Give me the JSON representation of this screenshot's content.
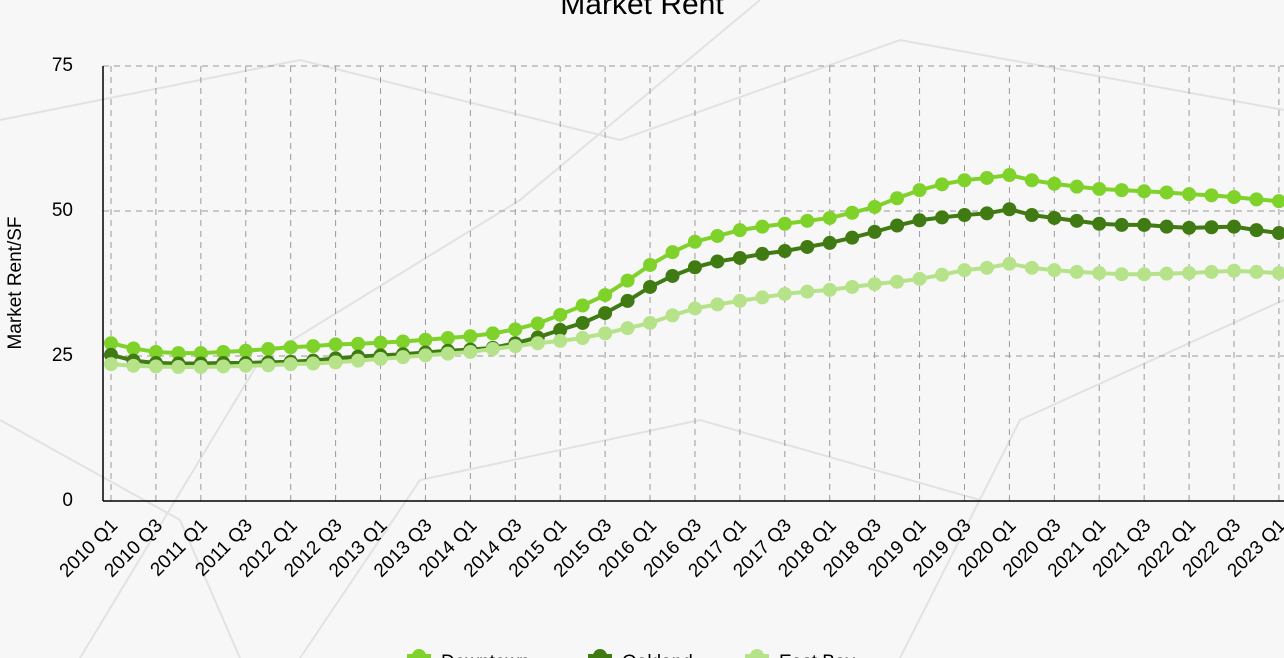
{
  "chart_data": {
    "type": "line",
    "title": "Market Rent",
    "y_label": "Market Rent/SF",
    "categories": [
      "2010 Q1",
      null,
      "2010 Q3",
      null,
      "2011 Q1",
      null,
      "2011 Q3",
      null,
      "2012 Q1",
      null,
      "2012 Q3",
      null,
      "2013 Q1",
      null,
      "2013 Q3",
      null,
      "2014 Q1",
      null,
      "2014 Q3",
      null,
      "2015 Q1",
      null,
      "2015 Q3",
      null,
      "2016 Q1",
      null,
      "2016 Q3",
      null,
      "2017 Q1",
      null,
      "2017 Q3",
      null,
      "2018 Q1",
      null,
      "2018 Q3",
      null,
      "2019 Q1",
      null,
      "2019 Q3",
      null,
      "2020 Q1",
      null,
      "2020 Q3",
      null,
      "2021 Q1",
      null,
      "2021 Q3",
      null,
      "2022 Q1",
      null,
      "2022 Q3",
      null,
      "2023 Q1"
    ],
    "series": [
      {
        "name": "Downtown",
        "color": "#7ed22a",
        "values": [
          27.2,
          26.3,
          25.7,
          25.5,
          25.5,
          25.7,
          25.9,
          26.2,
          26.5,
          26.7,
          27.0,
          27.1,
          27.3,
          27.5,
          27.8,
          28.1,
          28.4,
          28.9,
          29.6,
          30.6,
          32.1,
          33.7,
          35.5,
          38.0,
          40.7,
          42.9,
          44.7,
          45.7,
          46.7,
          47.3,
          47.8,
          48.3,
          48.8,
          49.7,
          50.7,
          52.2,
          53.6,
          54.6,
          55.3,
          55.7,
          56.2,
          55.3,
          54.7,
          54.2,
          53.8,
          53.6,
          53.4,
          53.2,
          52.9,
          52.7,
          52.4,
          52.0,
          51.7
        ]
      },
      {
        "name": "Oakland",
        "color": "#3f7a12",
        "values": [
          25.2,
          24.2,
          23.8,
          23.7,
          23.7,
          23.8,
          23.8,
          23.9,
          24.0,
          24.2,
          24.6,
          24.9,
          25.1,
          25.3,
          25.6,
          25.9,
          26.1,
          26.4,
          27.2,
          28.2,
          29.5,
          30.7,
          32.4,
          34.5,
          36.9,
          38.8,
          40.3,
          41.3,
          41.9,
          42.6,
          43.1,
          43.8,
          44.5,
          45.4,
          46.4,
          47.5,
          48.4,
          48.9,
          49.3,
          49.6,
          50.3,
          49.3,
          48.8,
          48.3,
          47.8,
          47.6,
          47.6,
          47.3,
          47.1,
          47.2,
          47.3,
          46.7,
          46.2
        ]
      },
      {
        "name": "East Bay",
        "color": "#b6e38a",
        "values": [
          23.6,
          23.3,
          23.2,
          23.1,
          23.1,
          23.2,
          23.3,
          23.4,
          23.6,
          23.7,
          23.9,
          24.2,
          24.5,
          24.8,
          25.1,
          25.4,
          25.7,
          26.2,
          26.7,
          27.2,
          27.6,
          28.1,
          28.9,
          29.8,
          30.7,
          32.0,
          33.2,
          33.9,
          34.5,
          35.1,
          35.7,
          36.1,
          36.4,
          36.9,
          37.4,
          37.8,
          38.3,
          39.0,
          39.8,
          40.2,
          40.9,
          40.2,
          39.8,
          39.5,
          39.3,
          39.1,
          39.1,
          39.2,
          39.3,
          39.5,
          39.7,
          39.5,
          39.3
        ]
      }
    ],
    "ylim": [
      0,
      75
    ],
    "yticks": [
      0,
      25,
      50,
      75
    ],
    "grid": true,
    "legend": "bottom"
  }
}
